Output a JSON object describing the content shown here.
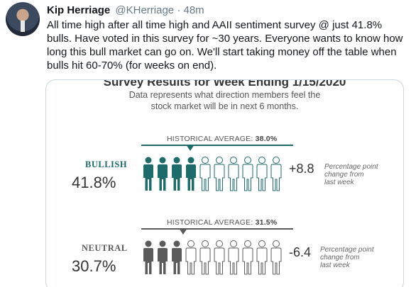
{
  "tweet": {
    "author_name": "Kip Herriage",
    "handle": "@KHerriage",
    "separator": "·",
    "time": "48m",
    "text": "All time high after all time high and AAII sentiment survey @ just 41.8% bulls. Have voted in this survey for ~30 years. Everyone wants to know how long this bull market can go on. We'll start taking money off the table when bulls hit 60-70% (for weeks on end)."
  },
  "card": {
    "title": "Survey Results for Week Ending 1/15/2020",
    "subtitle_line1": "Data represents what direction members feel the",
    "subtitle_line2": "stock market will be in next 6 months.",
    "rows": [
      {
        "label": "BULLISH",
        "percent": "41.8%",
        "hist_label": "HISTORICAL AVERAGE:",
        "hist_value": "38.0%",
        "change": "+8.8",
        "note_line1": "Percentage point",
        "note_line2": "change from",
        "note_line3": "last week",
        "filled_count": 4,
        "total_icons": 10,
        "color": "#1d6b6b"
      },
      {
        "label": "NEUTRAL",
        "percent": "30.7%",
        "hist_label": "HISTORICAL AVERAGE:",
        "hist_value": "31.5%",
        "change": "-6.4",
        "note_line1": "Percentage point",
        "note_line2": "change from",
        "note_line3": "last week",
        "filled_count": 3,
        "total_icons": 10,
        "color": "#5b5b5b"
      }
    ]
  }
}
